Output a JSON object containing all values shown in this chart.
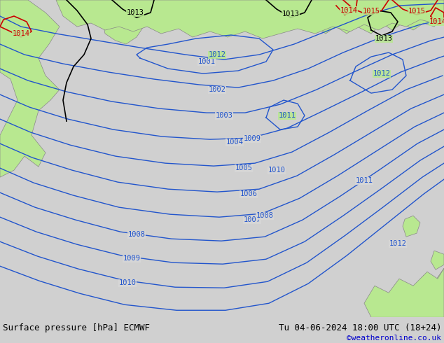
{
  "title_left": "Surface pressure [hPa] ECMWF",
  "title_right": "Tu 04-06-2024 18:00 UTC (18+24)",
  "credit": "©weatheronline.co.uk",
  "bottom_bar_color": "#ffffcc",
  "map_bg_color": "#d0d0d0",
  "land_color": "#b8e890",
  "sea_color": "#d8d8d8",
  "blue": "#2255cc",
  "black": "#000000",
  "red": "#cc0000",
  "credit_color": "#0000cc",
  "font_size_bottom": 9
}
